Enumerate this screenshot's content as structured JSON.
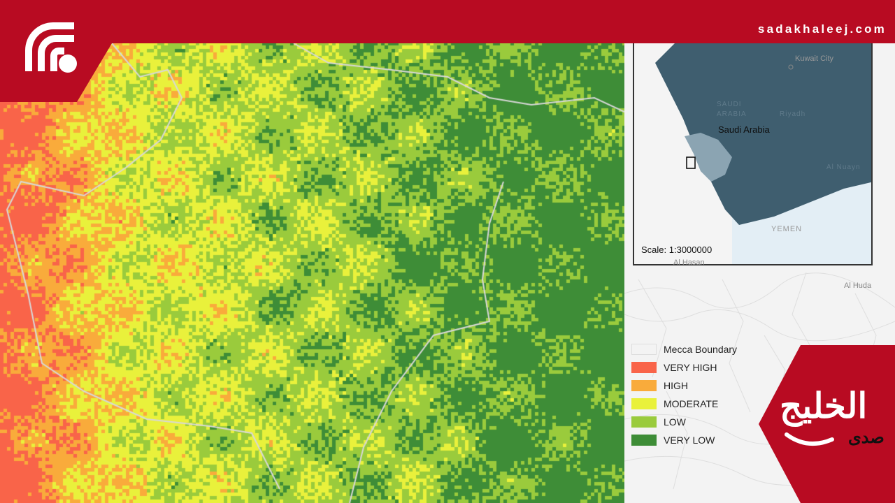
{
  "header": {
    "site_url": "sadakhaleej.com"
  },
  "brand": {
    "logo_icon": "wifi-signal-icon",
    "name_arabic_main": "الخليج",
    "name_arabic_sub": "صدى"
  },
  "map": {
    "category_colors": {
      "very_high": "#f96449",
      "high": "#f9ab3b",
      "moderate": "#e9f13b",
      "low": "#9acb3c",
      "very_low": "#3e8d37"
    },
    "boundary_color": "#d8d8d8"
  },
  "inset": {
    "country_label": "Saudi Arabia",
    "scale_label": "Scale: 1:3000000",
    "place_labels": {
      "kuwait": "Kuwait City",
      "riyadh": "Riyadh",
      "yemen": "YEMEN",
      "saudi_faint_1": "SAUDI",
      "saudi_faint_2": "ARABIA",
      "al_nuayn": "Al Nuayn"
    },
    "colors": {
      "country_fill": "#3f5e6f",
      "region_fill": "#8ba4b2",
      "sea_fill": "#e3eef5"
    }
  },
  "outside_labels": {
    "al_hasan": "Al Hasan",
    "al_huda": "Al Huda"
  },
  "legend": {
    "items": [
      {
        "label": "Mecca Boundary",
        "color": "#ffffff"
      },
      {
        "label": "VERY HIGH",
        "color": "#f96449"
      },
      {
        "label": "HIGH",
        "color": "#f9ab3b"
      },
      {
        "label": "MODERATE",
        "color": "#e9f13b"
      },
      {
        "label": "LOW",
        "color": "#9acb3c"
      },
      {
        "label": "VERY LOW",
        "color": "#3e8d37"
      }
    ]
  }
}
